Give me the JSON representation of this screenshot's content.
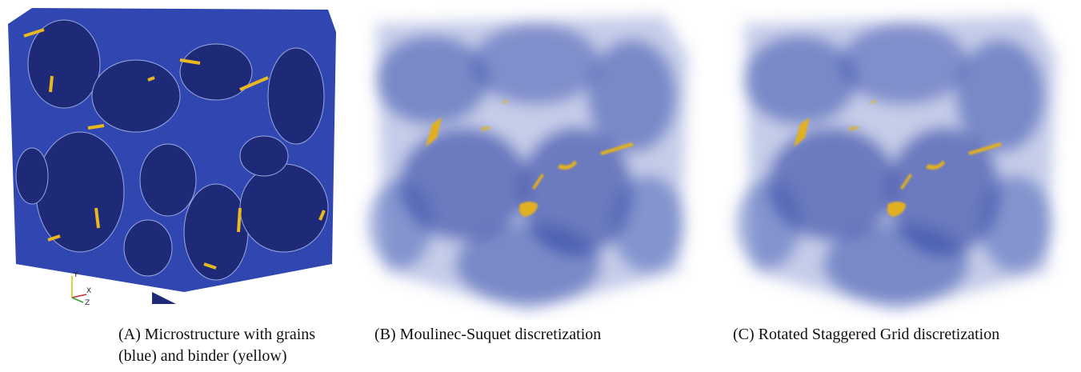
{
  "figure": {
    "panels": [
      {
        "caption": "(A) Microstructure with grains (blue) and binder (yellow)",
        "axes": [
          "Y",
          "X",
          "Z"
        ]
      },
      {
        "caption": "(B) Moulinec-Suquet discretization"
      },
      {
        "caption": "(C) Rotated Staggered Grid discretization"
      }
    ]
  }
}
